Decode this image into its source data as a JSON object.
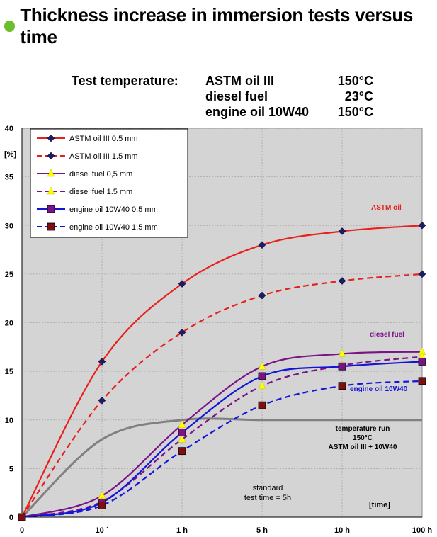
{
  "title": "Thickness increase in immersion tests versus time",
  "test_temperature": {
    "label": "Test temperature:",
    "rows": [
      {
        "medium": "ASTM oil III",
        "temp": "150°C"
      },
      {
        "medium": "diesel fuel",
        "temp": "23°C"
      },
      {
        "medium": "engine oil 10W40",
        "temp": "150°C"
      }
    ]
  },
  "colors": {
    "bullet": "#6cbf2a",
    "astm": "#e8201c",
    "diesel": "#7a1486",
    "engine": "#1414d8",
    "temp_run": "#808080",
    "plot_bg": "#d4d4d4"
  },
  "chart_data": {
    "type": "line",
    "ylabel": "[%]",
    "xlabel": "[time]",
    "ylim": [
      0,
      40
    ],
    "yticks": [
      0,
      5,
      10,
      15,
      20,
      25,
      30,
      35,
      40
    ],
    "x_categories": [
      "0",
      "10 ´",
      "1 h",
      "5 h",
      "10 h",
      "100 h"
    ],
    "grid": true,
    "legend_position": "top-left",
    "series": [
      {
        "name": "ASTM oil III 0.5 mm",
        "color": "#e8201c",
        "dash": false,
        "marker": "diamond",
        "marker_color": "#1c1c6e",
        "values": [
          0,
          16,
          24,
          28,
          29.4,
          30
        ]
      },
      {
        "name": "ASTM oil III 1.5 mm",
        "color": "#e8201c",
        "dash": true,
        "marker": "diamond",
        "marker_color": "#1c1c6e",
        "values": [
          0,
          12,
          19,
          22.8,
          24.3,
          25
        ]
      },
      {
        "name": "diesel fuel 0,5 mm",
        "color": "#7a1486",
        "dash": false,
        "marker": "triangle",
        "marker_color": "#ffff00",
        "values": [
          0,
          2.2,
          9.5,
          15.5,
          16.8,
          17
        ]
      },
      {
        "name": "diesel fuel 1.5 mm",
        "color": "#7a1486",
        "dash": true,
        "marker": "triangle",
        "marker_color": "#ffff00",
        "values": [
          0,
          1.6,
          8,
          13.5,
          15.6,
          16.5
        ]
      },
      {
        "name": "engine oil 10W40 0.5 mm",
        "color": "#1414d8",
        "dash": false,
        "marker": "square",
        "marker_color": "#7a1486",
        "values": [
          0,
          1.5,
          8.7,
          14.5,
          15.5,
          16
        ]
      },
      {
        "name": "engine oil 10W40 1.5 mm",
        "color": "#1414d8",
        "dash": true,
        "marker": "square",
        "marker_color": "#7a1010",
        "values": [
          0,
          1.2,
          6.8,
          11.5,
          13.5,
          14
        ]
      }
    ],
    "temperature_run_curve": {
      "values": [
        0,
        8,
        10,
        10,
        10,
        10
      ]
    },
    "annotations": {
      "astm": "ASTM oil",
      "diesel": "diesel fuel",
      "engine": "engine oil 10W40",
      "temp_run": [
        "temperature run",
        "150°C",
        "ASTM oil III + 10W40"
      ],
      "standard": [
        "standard",
        "test time = 5h"
      ]
    }
  }
}
